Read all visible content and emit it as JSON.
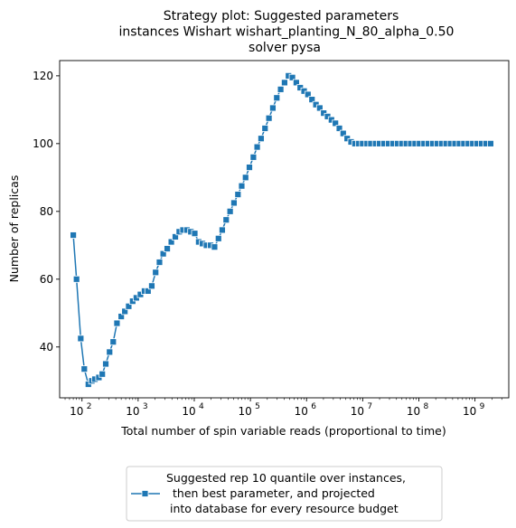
{
  "chart_data": {
    "type": "line",
    "title_lines": [
      "Strategy plot: Suggested parameters",
      "instances Wishart wishart_planting_N_80_alpha_0.50",
      "solver pysa"
    ],
    "xlabel": "Total number of spin variable reads (proportional to time)",
    "ylabel": "Number of replicas",
    "x_scale": "log",
    "xlim": [
      40,
      4000000000
    ],
    "ylim": [
      25,
      124.5
    ],
    "x_ticks": [
      {
        "value": 100,
        "base": "10",
        "exp": "2"
      },
      {
        "value": 1000,
        "base": "10",
        "exp": "3"
      },
      {
        "value": 10000,
        "base": "10",
        "exp": "4"
      },
      {
        "value": 100000,
        "base": "10",
        "exp": "5"
      },
      {
        "value": 1000000,
        "base": "10",
        "exp": "6"
      },
      {
        "value": 10000000,
        "base": "10",
        "exp": "7"
      },
      {
        "value": 100000000,
        "base": "10",
        "exp": "8"
      },
      {
        "value": 1000000000,
        "base": "10",
        "exp": "9"
      }
    ],
    "y_ticks": [
      {
        "value": 40,
        "label": "40"
      },
      {
        "value": 60,
        "label": "60"
      },
      {
        "value": 80,
        "label": "80"
      },
      {
        "value": 100,
        "label": "100"
      },
      {
        "value": 120,
        "label": "120"
      }
    ],
    "grid": false,
    "legend_position": "below-center",
    "series": [
      {
        "name_lines": [
          "Suggested rep 10 quantile over instances,",
          "then best parameter, and projected",
          "into database for every resource budget"
        ],
        "color": "#1f77b4",
        "marker": "square",
        "points": [
          [
            70,
            73
          ],
          [
            80,
            60
          ],
          [
            95,
            42.5
          ],
          [
            110,
            33.5
          ],
          [
            130,
            29
          ],
          [
            150,
            30
          ],
          [
            170,
            30.5
          ],
          [
            200,
            31
          ],
          [
            230,
            32
          ],
          [
            265,
            35
          ],
          [
            310,
            38.5
          ],
          [
            360,
            41.5
          ],
          [
            420,
            47
          ],
          [
            500,
            49
          ],
          [
            580,
            50.5
          ],
          [
            680,
            52
          ],
          [
            800,
            53.5
          ],
          [
            930,
            54.5
          ],
          [
            1100,
            55.5
          ],
          [
            1300,
            56.5
          ],
          [
            1500,
            56.5
          ],
          [
            1750,
            58
          ],
          [
            2050,
            62
          ],
          [
            2400,
            65
          ],
          [
            2800,
            67.5
          ],
          [
            3300,
            69
          ],
          [
            3900,
            71
          ],
          [
            4600,
            72.5
          ],
          [
            5400,
            74
          ],
          [
            6300,
            74.5
          ],
          [
            7400,
            74.5
          ],
          [
            8700,
            74
          ],
          [
            10200,
            73.5
          ],
          [
            12000,
            71
          ],
          [
            14000,
            70.5
          ],
          [
            16500,
            70
          ],
          [
            19500,
            70
          ],
          [
            23000,
            69.5
          ],
          [
            27000,
            72
          ],
          [
            31500,
            74.5
          ],
          [
            37000,
            77.5
          ],
          [
            43500,
            80
          ],
          [
            51000,
            82.5
          ],
          [
            60000,
            85
          ],
          [
            70000,
            87.5
          ],
          [
            82000,
            90
          ],
          [
            96000,
            93
          ],
          [
            113000,
            96
          ],
          [
            132000,
            99
          ],
          [
            155000,
            101.5
          ],
          [
            182000,
            104.5
          ],
          [
            214000,
            107.5
          ],
          [
            251000,
            110.5
          ],
          [
            295000,
            113.5
          ],
          [
            346000,
            116
          ],
          [
            406000,
            118
          ],
          [
            477000,
            120
          ],
          [
            560000,
            119.5
          ],
          [
            657000,
            118
          ],
          [
            771000,
            116.5
          ],
          [
            905000,
            115.5
          ],
          [
            1060000,
            114.5
          ],
          [
            1250000,
            113
          ],
          [
            1470000,
            111.5
          ],
          [
            1720000,
            110.5
          ],
          [
            2020000,
            109
          ],
          [
            2370000,
            108
          ],
          [
            2780000,
            107
          ],
          [
            3270000,
            106
          ],
          [
            3840000,
            104.5
          ],
          [
            4500000,
            103
          ],
          [
            5290000,
            101.5
          ],
          [
            6210000,
            100.5
          ],
          [
            7290000,
            100
          ],
          [
            8560000,
            100
          ],
          [
            10000000,
            100
          ],
          [
            12000000,
            100
          ],
          [
            14000000,
            100
          ],
          [
            17000000,
            100
          ],
          [
            20000000,
            100
          ],
          [
            24000000,
            100
          ],
          [
            29000000,
            100
          ],
          [
            35000000,
            100
          ],
          [
            42000000,
            100
          ],
          [
            50000000,
            100
          ],
          [
            60000000,
            100
          ],
          [
            72000000,
            100
          ],
          [
            86000000,
            100
          ],
          [
            103000000,
            100
          ],
          [
            124000000,
            100
          ],
          [
            148000000,
            100
          ],
          [
            178000000,
            100
          ],
          [
            213000000,
            100
          ],
          [
            256000000,
            100
          ],
          [
            307000000,
            100
          ],
          [
            368000000,
            100
          ],
          [
            442000000,
            100
          ],
          [
            530000000,
            100
          ],
          [
            636000000,
            100
          ],
          [
            763000000,
            100
          ],
          [
            916000000,
            100
          ],
          [
            1100000000,
            100
          ],
          [
            1320000000,
            100
          ],
          [
            1580000000,
            100
          ],
          [
            1900000000,
            100
          ]
        ]
      }
    ]
  }
}
